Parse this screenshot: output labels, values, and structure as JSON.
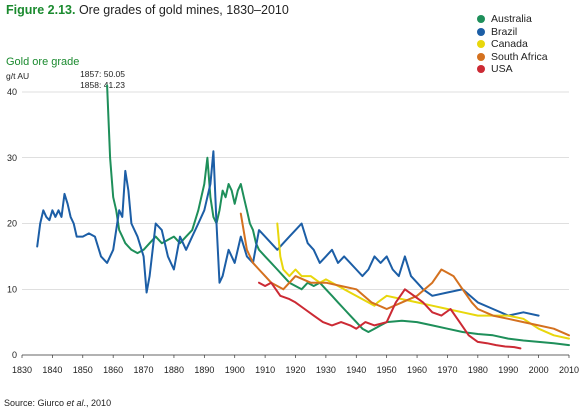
{
  "header": {
    "figure_label": "Figure 2.13.",
    "title_text": " Ore grades of gold mines, 1830–2010"
  },
  "source": {
    "prefix": "Source: Giurco ",
    "italic": "et al",
    "suffix": "., 2010"
  },
  "chart_data": {
    "type": "line",
    "ylabel": "Gold ore grade",
    "yunit": "g/t AU",
    "xlim": [
      1830,
      2010
    ],
    "ylim": [
      0,
      40
    ],
    "xticks": [
      1830,
      1840,
      1850,
      1860,
      1870,
      1880,
      1890,
      1900,
      1910,
      1920,
      1930,
      1940,
      1950,
      1960,
      1970,
      1980,
      1990,
      2000,
      2010
    ],
    "yticks": [
      0,
      10,
      20,
      30,
      40
    ],
    "grid": true,
    "legend_position": "top-right",
    "annotations": [
      "1857: 50.05",
      "1858: 41.23"
    ],
    "series": [
      {
        "name": "Australia",
        "color": "#1e8f5a",
        "points": [
          [
            1858,
            41
          ],
          [
            1859,
            30
          ],
          [
            1860,
            24
          ],
          [
            1861,
            22
          ],
          [
            1862,
            19
          ],
          [
            1863,
            18
          ],
          [
            1864,
            17
          ],
          [
            1866,
            16
          ],
          [
            1868,
            15.5
          ],
          [
            1870,
            16
          ],
          [
            1872,
            17
          ],
          [
            1874,
            18
          ],
          [
            1876,
            17
          ],
          [
            1878,
            17.5
          ],
          [
            1880,
            18
          ],
          [
            1882,
            17
          ],
          [
            1884,
            18
          ],
          [
            1886,
            19
          ],
          [
            1888,
            22
          ],
          [
            1890,
            26
          ],
          [
            1891,
            30
          ],
          [
            1892,
            24
          ],
          [
            1893,
            21
          ],
          [
            1894,
            20
          ],
          [
            1895,
            22
          ],
          [
            1896,
            25
          ],
          [
            1897,
            24
          ],
          [
            1898,
            26
          ],
          [
            1899,
            25
          ],
          [
            1900,
            23
          ],
          [
            1901,
            25
          ],
          [
            1902,
            26
          ],
          [
            1903,
            24
          ],
          [
            1904,
            22
          ],
          [
            1905,
            20
          ],
          [
            1906,
            19
          ],
          [
            1907,
            17
          ],
          [
            1908,
            16
          ],
          [
            1910,
            15
          ],
          [
            1912,
            14
          ],
          [
            1914,
            13
          ],
          [
            1916,
            12
          ],
          [
            1918,
            11
          ],
          [
            1920,
            10.5
          ],
          [
            1922,
            10
          ],
          [
            1924,
            11
          ],
          [
            1926,
            10.5
          ],
          [
            1928,
            11
          ],
          [
            1930,
            10
          ],
          [
            1932,
            9
          ],
          [
            1934,
            8
          ],
          [
            1936,
            7
          ],
          [
            1938,
            6
          ],
          [
            1940,
            5
          ],
          [
            1942,
            4
          ],
          [
            1944,
            3.5
          ],
          [
            1946,
            4
          ],
          [
            1948,
            4.5
          ],
          [
            1950,
            5
          ],
          [
            1955,
            5.2
          ],
          [
            1960,
            5
          ],
          [
            1965,
            4.5
          ],
          [
            1970,
            4
          ],
          [
            1975,
            3.5
          ],
          [
            1980,
            3.2
          ],
          [
            1985,
            3
          ],
          [
            1990,
            2.5
          ],
          [
            1995,
            2.2
          ],
          [
            2000,
            2
          ],
          [
            2005,
            1.8
          ],
          [
            2010,
            1.5
          ]
        ]
      },
      {
        "name": "Brazil",
        "color": "#1c5ea6",
        "points": [
          [
            1835,
            16.5
          ],
          [
            1836,
            20
          ],
          [
            1837,
            22
          ],
          [
            1838,
            21
          ],
          [
            1839,
            20.5
          ],
          [
            1840,
            22
          ],
          [
            1841,
            21
          ],
          [
            1842,
            22
          ],
          [
            1843,
            21
          ],
          [
            1844,
            24.5
          ],
          [
            1845,
            23
          ],
          [
            1846,
            21
          ],
          [
            1847,
            20
          ],
          [
            1848,
            18
          ],
          [
            1850,
            18
          ],
          [
            1852,
            18.5
          ],
          [
            1854,
            18
          ],
          [
            1856,
            15
          ],
          [
            1858,
            14
          ],
          [
            1860,
            16
          ],
          [
            1862,
            22
          ],
          [
            1863,
            21
          ],
          [
            1864,
            28
          ],
          [
            1865,
            25
          ],
          [
            1866,
            20
          ],
          [
            1868,
            18
          ],
          [
            1870,
            15
          ],
          [
            1871,
            9.5
          ],
          [
            1872,
            12
          ],
          [
            1874,
            20
          ],
          [
            1876,
            19
          ],
          [
            1878,
            15
          ],
          [
            1880,
            13
          ],
          [
            1882,
            18
          ],
          [
            1884,
            16
          ],
          [
            1886,
            18
          ],
          [
            1888,
            20
          ],
          [
            1890,
            22
          ],
          [
            1892,
            26
          ],
          [
            1893,
            31
          ],
          [
            1894,
            20
          ],
          [
            1895,
            11
          ],
          [
            1896,
            12
          ],
          [
            1898,
            16
          ],
          [
            1900,
            14
          ],
          [
            1902,
            18
          ],
          [
            1904,
            15
          ],
          [
            1906,
            14
          ],
          [
            1908,
            19
          ],
          [
            1910,
            18
          ],
          [
            1912,
            17
          ],
          [
            1914,
            16
          ],
          [
            1916,
            17
          ],
          [
            1918,
            18
          ],
          [
            1920,
            19
          ],
          [
            1922,
            20
          ],
          [
            1924,
            17
          ],
          [
            1926,
            16
          ],
          [
            1928,
            14
          ],
          [
            1930,
            15
          ],
          [
            1932,
            16
          ],
          [
            1934,
            14
          ],
          [
            1936,
            15
          ],
          [
            1938,
            14
          ],
          [
            1940,
            13
          ],
          [
            1942,
            12
          ],
          [
            1944,
            13
          ],
          [
            1946,
            15
          ],
          [
            1948,
            14
          ],
          [
            1950,
            15
          ],
          [
            1952,
            13
          ],
          [
            1954,
            12
          ],
          [
            1956,
            15
          ],
          [
            1958,
            12
          ],
          [
            1960,
            11
          ],
          [
            1962,
            10
          ],
          [
            1965,
            9
          ],
          [
            1970,
            9.5
          ],
          [
            1975,
            10
          ],
          [
            1980,
            8
          ],
          [
            1985,
            7
          ],
          [
            1990,
            6
          ],
          [
            1995,
            6.5
          ],
          [
            2000,
            6
          ]
        ]
      },
      {
        "name": "Canada",
        "color": "#e8d70c",
        "points": [
          [
            1914,
            20
          ],
          [
            1915,
            15
          ],
          [
            1916,
            13
          ],
          [
            1918,
            12
          ],
          [
            1920,
            13
          ],
          [
            1922,
            12
          ],
          [
            1925,
            12
          ],
          [
            1928,
            11
          ],
          [
            1930,
            11.5
          ],
          [
            1946,
            7.5
          ],
          [
            1947,
            8
          ],
          [
            1950,
            9
          ],
          [
            1955,
            8.5
          ],
          [
            1960,
            8
          ],
          [
            1965,
            7.5
          ],
          [
            1970,
            7
          ],
          [
            1975,
            6.5
          ],
          [
            1980,
            6
          ],
          [
            1985,
            6
          ],
          [
            1990,
            6
          ],
          [
            1995,
            5.5
          ],
          [
            2000,
            4
          ],
          [
            2005,
            3
          ],
          [
            2010,
            2.5
          ]
        ]
      },
      {
        "name": "South Africa",
        "color": "#d4711f",
        "points": [
          [
            1902,
            21.5
          ],
          [
            1904,
            16
          ],
          [
            1906,
            14
          ],
          [
            1908,
            13
          ],
          [
            1910,
            12
          ],
          [
            1912,
            11
          ],
          [
            1914,
            10.5
          ],
          [
            1916,
            10
          ],
          [
            1918,
            11
          ],
          [
            1920,
            12
          ],
          [
            1925,
            11
          ],
          [
            1930,
            11
          ],
          [
            1935,
            10.5
          ],
          [
            1940,
            10
          ],
          [
            1945,
            8
          ],
          [
            1950,
            7
          ],
          [
            1955,
            8
          ],
          [
            1960,
            9
          ],
          [
            1965,
            11
          ],
          [
            1968,
            13
          ],
          [
            1970,
            12.5
          ],
          [
            1972,
            12
          ],
          [
            1975,
            10
          ],
          [
            1978,
            8
          ],
          [
            1980,
            7
          ],
          [
            1985,
            6
          ],
          [
            1990,
            5.5
          ],
          [
            1995,
            5
          ],
          [
            2000,
            4.5
          ],
          [
            2005,
            4
          ],
          [
            2010,
            3
          ]
        ]
      },
      {
        "name": "USA",
        "color": "#cc2a34",
        "points": [
          [
            1908,
            11
          ],
          [
            1910,
            10.5
          ],
          [
            1912,
            11
          ],
          [
            1915,
            9
          ],
          [
            1918,
            8.5
          ],
          [
            1920,
            8
          ],
          [
            1923,
            7
          ],
          [
            1926,
            6
          ],
          [
            1929,
            5
          ],
          [
            1932,
            4.5
          ],
          [
            1935,
            5
          ],
          [
            1938,
            4.5
          ],
          [
            1940,
            4
          ],
          [
            1943,
            5
          ],
          [
            1946,
            4.5
          ],
          [
            1950,
            5
          ],
          [
            1953,
            8
          ],
          [
            1956,
            10
          ],
          [
            1959,
            9
          ],
          [
            1962,
            8
          ],
          [
            1965,
            6.5
          ],
          [
            1968,
            6
          ],
          [
            1971,
            7
          ],
          [
            1974,
            5
          ],
          [
            1977,
            3
          ],
          [
            1980,
            2
          ],
          [
            1983,
            1.8
          ],
          [
            1986,
            1.5
          ],
          [
            1989,
            1.3
          ],
          [
            1992,
            1.2
          ],
          [
            1994,
            1
          ]
        ]
      }
    ]
  }
}
